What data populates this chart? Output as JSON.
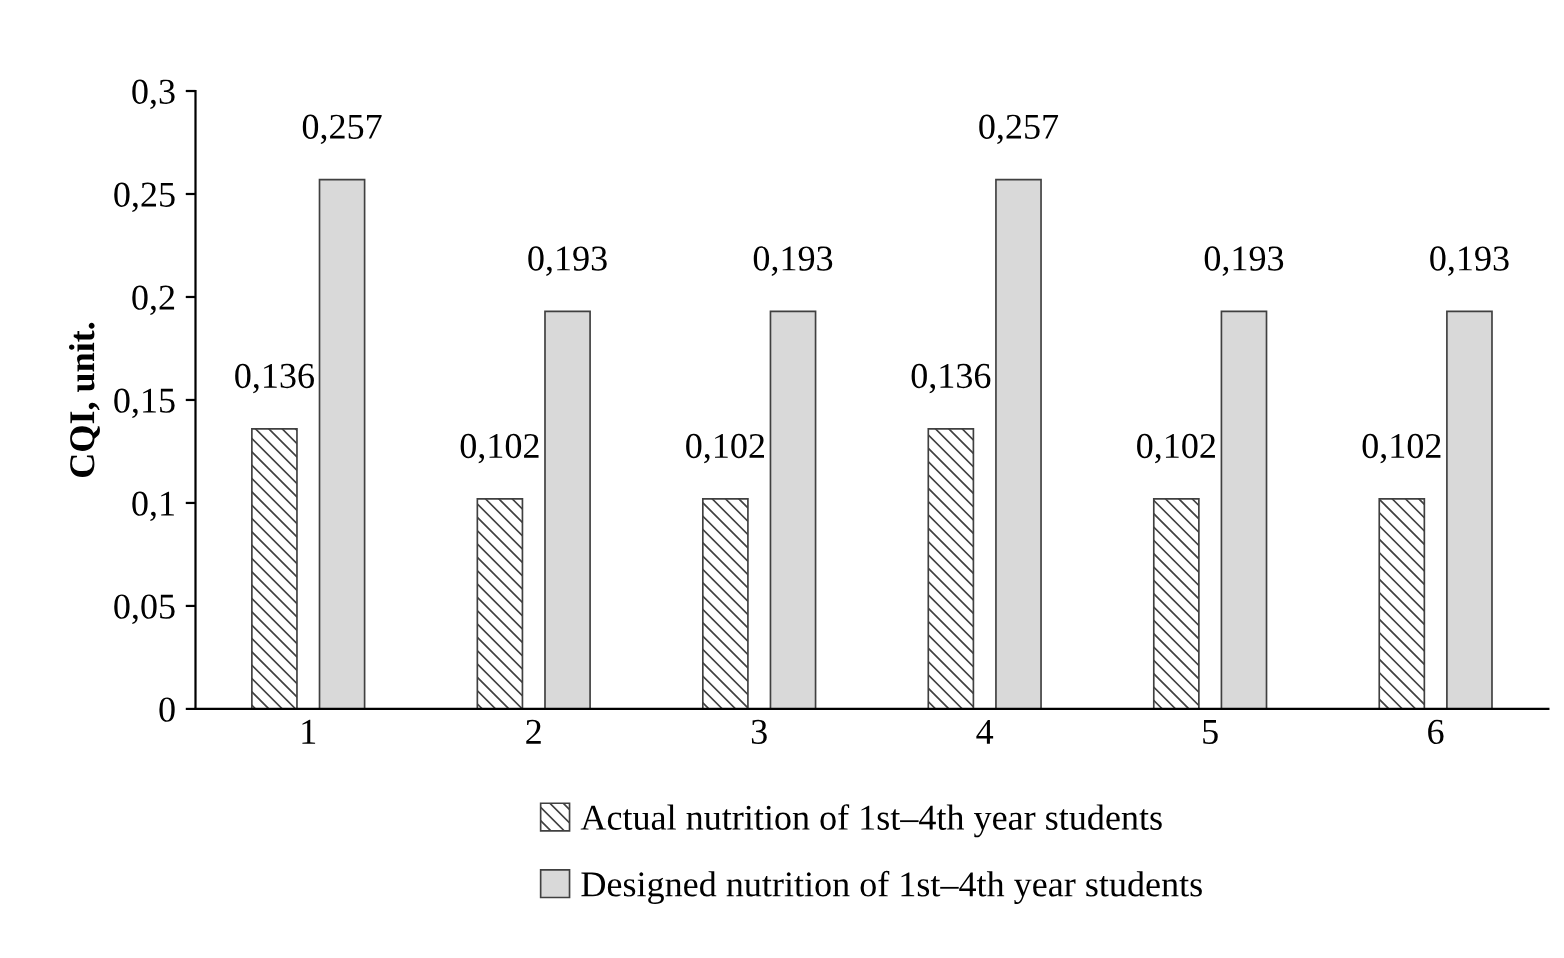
{
  "chart_data": {
    "type": "bar",
    "ylabel": "CQI, unit.",
    "categories": [
      "1",
      "2",
      "3",
      "4",
      "5",
      "6"
    ],
    "series": [
      {
        "name": "Actual nutrition of 1st–4th year students",
        "color": "#404040",
        "values": [
          0.136,
          0.102,
          0.102,
          0.136,
          0.102,
          0.102
        ],
        "value_labels": [
          "0,136",
          "0,102",
          "0,102",
          "0,136",
          "0,102",
          "0,102"
        ]
      },
      {
        "name": "Designed nutrition of 1st–4th year students",
        "color": "#d9d9d9",
        "values": [
          0.257,
          0.193,
          0.193,
          0.257,
          0.193,
          0.193
        ],
        "value_labels": [
          "0,257",
          "0,193",
          "0,193",
          "0,257",
          "0,193",
          "0,193"
        ]
      }
    ],
    "ylim": [
      0,
      0.3
    ],
    "yticks": [
      0,
      {
        "value": 0.05,
        "label": "0,05"
      },
      {
        "value": 0.1,
        "label": "0,1"
      },
      {
        "value": 0.15,
        "label": "0,15"
      },
      {
        "value": 0.2,
        "label": "0,2"
      },
      {
        "value": 0.25,
        "label": "0,25"
      },
      {
        "value": 0.3,
        "label": "0,3"
      }
    ],
    "grid": false,
    "legend": "bottom"
  }
}
